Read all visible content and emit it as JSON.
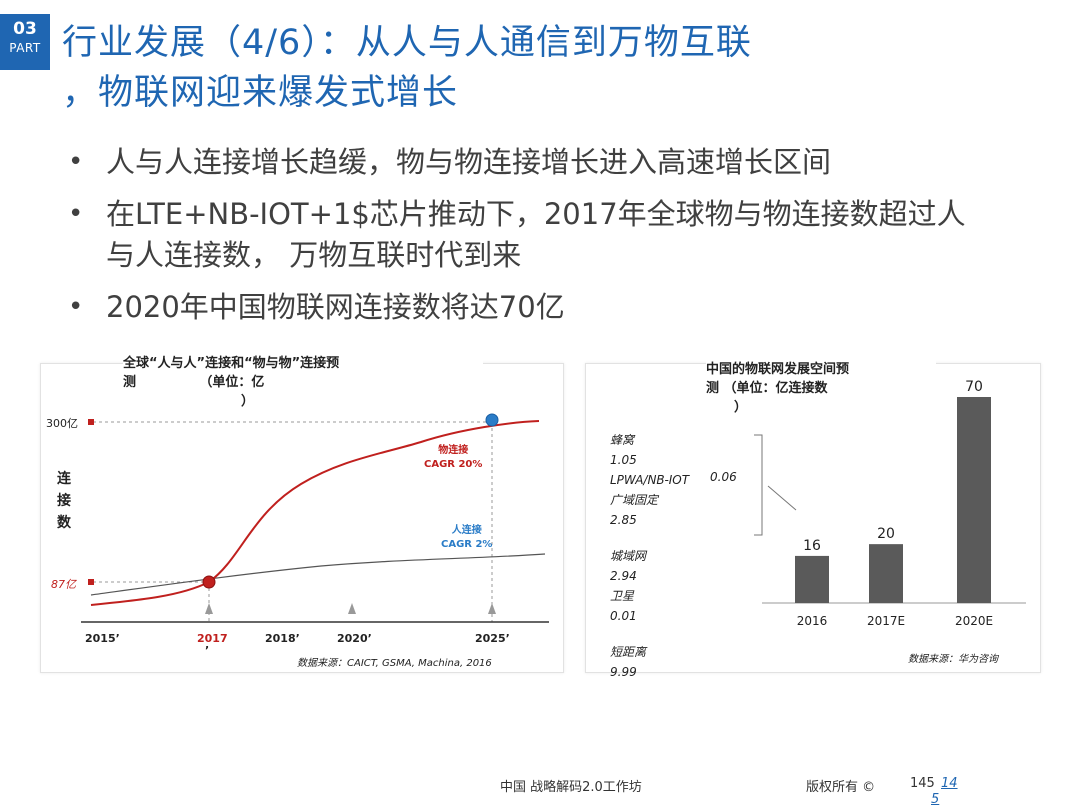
{
  "badge": {
    "number": "03",
    "part": "PART"
  },
  "title": {
    "line1": "行业发展（4/6）：从人与人通信到万物互联",
    "line2": "，物联网迎来爆发式增长"
  },
  "bullets": [
    {
      "text": "人与人连接增长趋缓，物与物连接增长进入高速增长区间"
    },
    {
      "text": "在LTE+NB-IOT+1$芯片推动下，2017年全球物与物连接数超过人与人连接数， 万物互联时代到来"
    },
    {
      "text": "2020年中国物联网连接数将达70亿"
    }
  ],
  "left_chart": {
    "title_line1": "全球“人与人”连接和“物与物”连接预",
    "title_line2": "测              （单位：亿",
    "title_line3": "）",
    "y_axis_label": "连\n接\n数",
    "y_tick_top": "300亿",
    "y_tick_bottom": "87亿",
    "x_labels": {
      "l2015": "2015’",
      "l2017": "2017",
      "l2017b": "’",
      "l2018": "2018’",
      "l2020": "2020’",
      "l2025": "2025’"
    },
    "series_things": {
      "name": "物连接",
      "cagr": "CAGR 20%",
      "color": "#c0201e"
    },
    "series_people": {
      "name": "人连接",
      "cagr": "CAGR 2%",
      "color": "#2a7cc7"
    },
    "source": "数据来源：CAICT, GSMA, Machina, 2016"
  },
  "chart_data": {
    "type": "bar",
    "title": "中国的物联网发展空间预测（单位：亿连接数）",
    "categories": [
      "2016",
      "2017E",
      "2020E"
    ],
    "values": [
      16,
      20,
      70
    ],
    "ylim": [
      0,
      70
    ],
    "bar_color": "#5a5a5a"
  },
  "right_chart": {
    "title_line1": "中国的物联网发展空间预",
    "title_line2": "测 （单位：亿连接数",
    "title_line3": "）",
    "breakdown": {
      "cellular": "蜂窝",
      "cellular_val": "1.05",
      "lpwa": "LPWA/NB-IOT",
      "lpwa_val": "0.06",
      "wan_fixed": "广域固定",
      "wan_fixed_val": "2.85",
      "man": "城域网",
      "man_val": "2.94",
      "satellite": "卫星",
      "satellite_val": "0.01",
      "short_range": "短距离",
      "short_range_val": "9.99"
    },
    "source": "数据来源：华为咨询"
  },
  "footer": {
    "org": "中国    战略解码2.0工作坊",
    "copyright": "版权所有 ©",
    "page": "145",
    "page_alt_a": "14",
    "page_alt_b": "5"
  }
}
